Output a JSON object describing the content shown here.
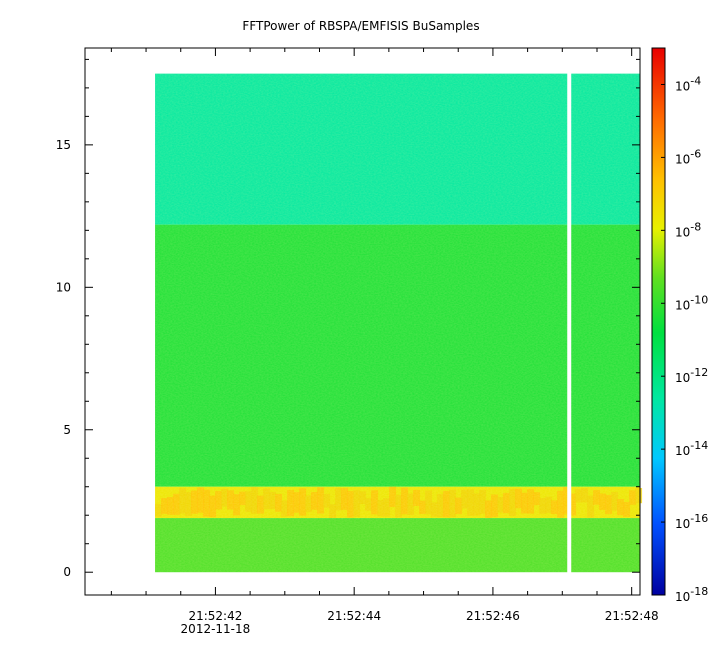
{
  "chart_data": {
    "type": "heatmap",
    "title": "FFTPower of RBSPA/EMFISIS  BuSamples",
    "xlabel": "",
    "ylabel": "",
    "x_ticks": [
      {
        "label": "21:52:42",
        "sublabel": "2012-11-18"
      },
      {
        "label": "21:52:44",
        "sublabel": ""
      },
      {
        "label": "21:52:46",
        "sublabel": ""
      },
      {
        "label": "21:52:48",
        "sublabel": ""
      }
    ],
    "xlim_seconds_after_21_52_40": [
      0.12,
      8.12
    ],
    "data_x_range_seconds_after_21_52_40": [
      1.13,
      8.12
    ],
    "gap_at_seconds_after_21_52_40": 7.1,
    "y_ticks": [
      0,
      5,
      10,
      15
    ],
    "ylim": [
      -0.8,
      18.4
    ],
    "data_y_range": [
      0,
      17.5
    ],
    "bands": [
      {
        "y": [
          12.2,
          17.5
        ],
        "log10_power": -12.5
      },
      {
        "y": [
          3.0,
          12.2
        ],
        "log10_power": -10.2
      },
      {
        "y": [
          1.9,
          3.0
        ],
        "log10_power": -8.3
      },
      {
        "y": [
          0.0,
          1.9
        ],
        "log10_power": -9.7
      }
    ],
    "colorbar": {
      "scale": "log",
      "range": [
        1e-18,
        0.001
      ],
      "tick_labels": [
        {
          "base": "10",
          "exp": "-4",
          "value": -4
        },
        {
          "base": "10",
          "exp": "-6",
          "value": -6
        },
        {
          "base": "10",
          "exp": "-8",
          "value": -8
        },
        {
          "base": "10",
          "exp": "-10",
          "value": -10
        },
        {
          "base": "10",
          "exp": "-12",
          "value": -12
        },
        {
          "base": "10",
          "exp": "-14",
          "value": -14
        },
        {
          "base": "10",
          "exp": "-16",
          "value": -16
        },
        {
          "base": "10",
          "exp": "-18",
          "value": -18
        }
      ]
    }
  }
}
